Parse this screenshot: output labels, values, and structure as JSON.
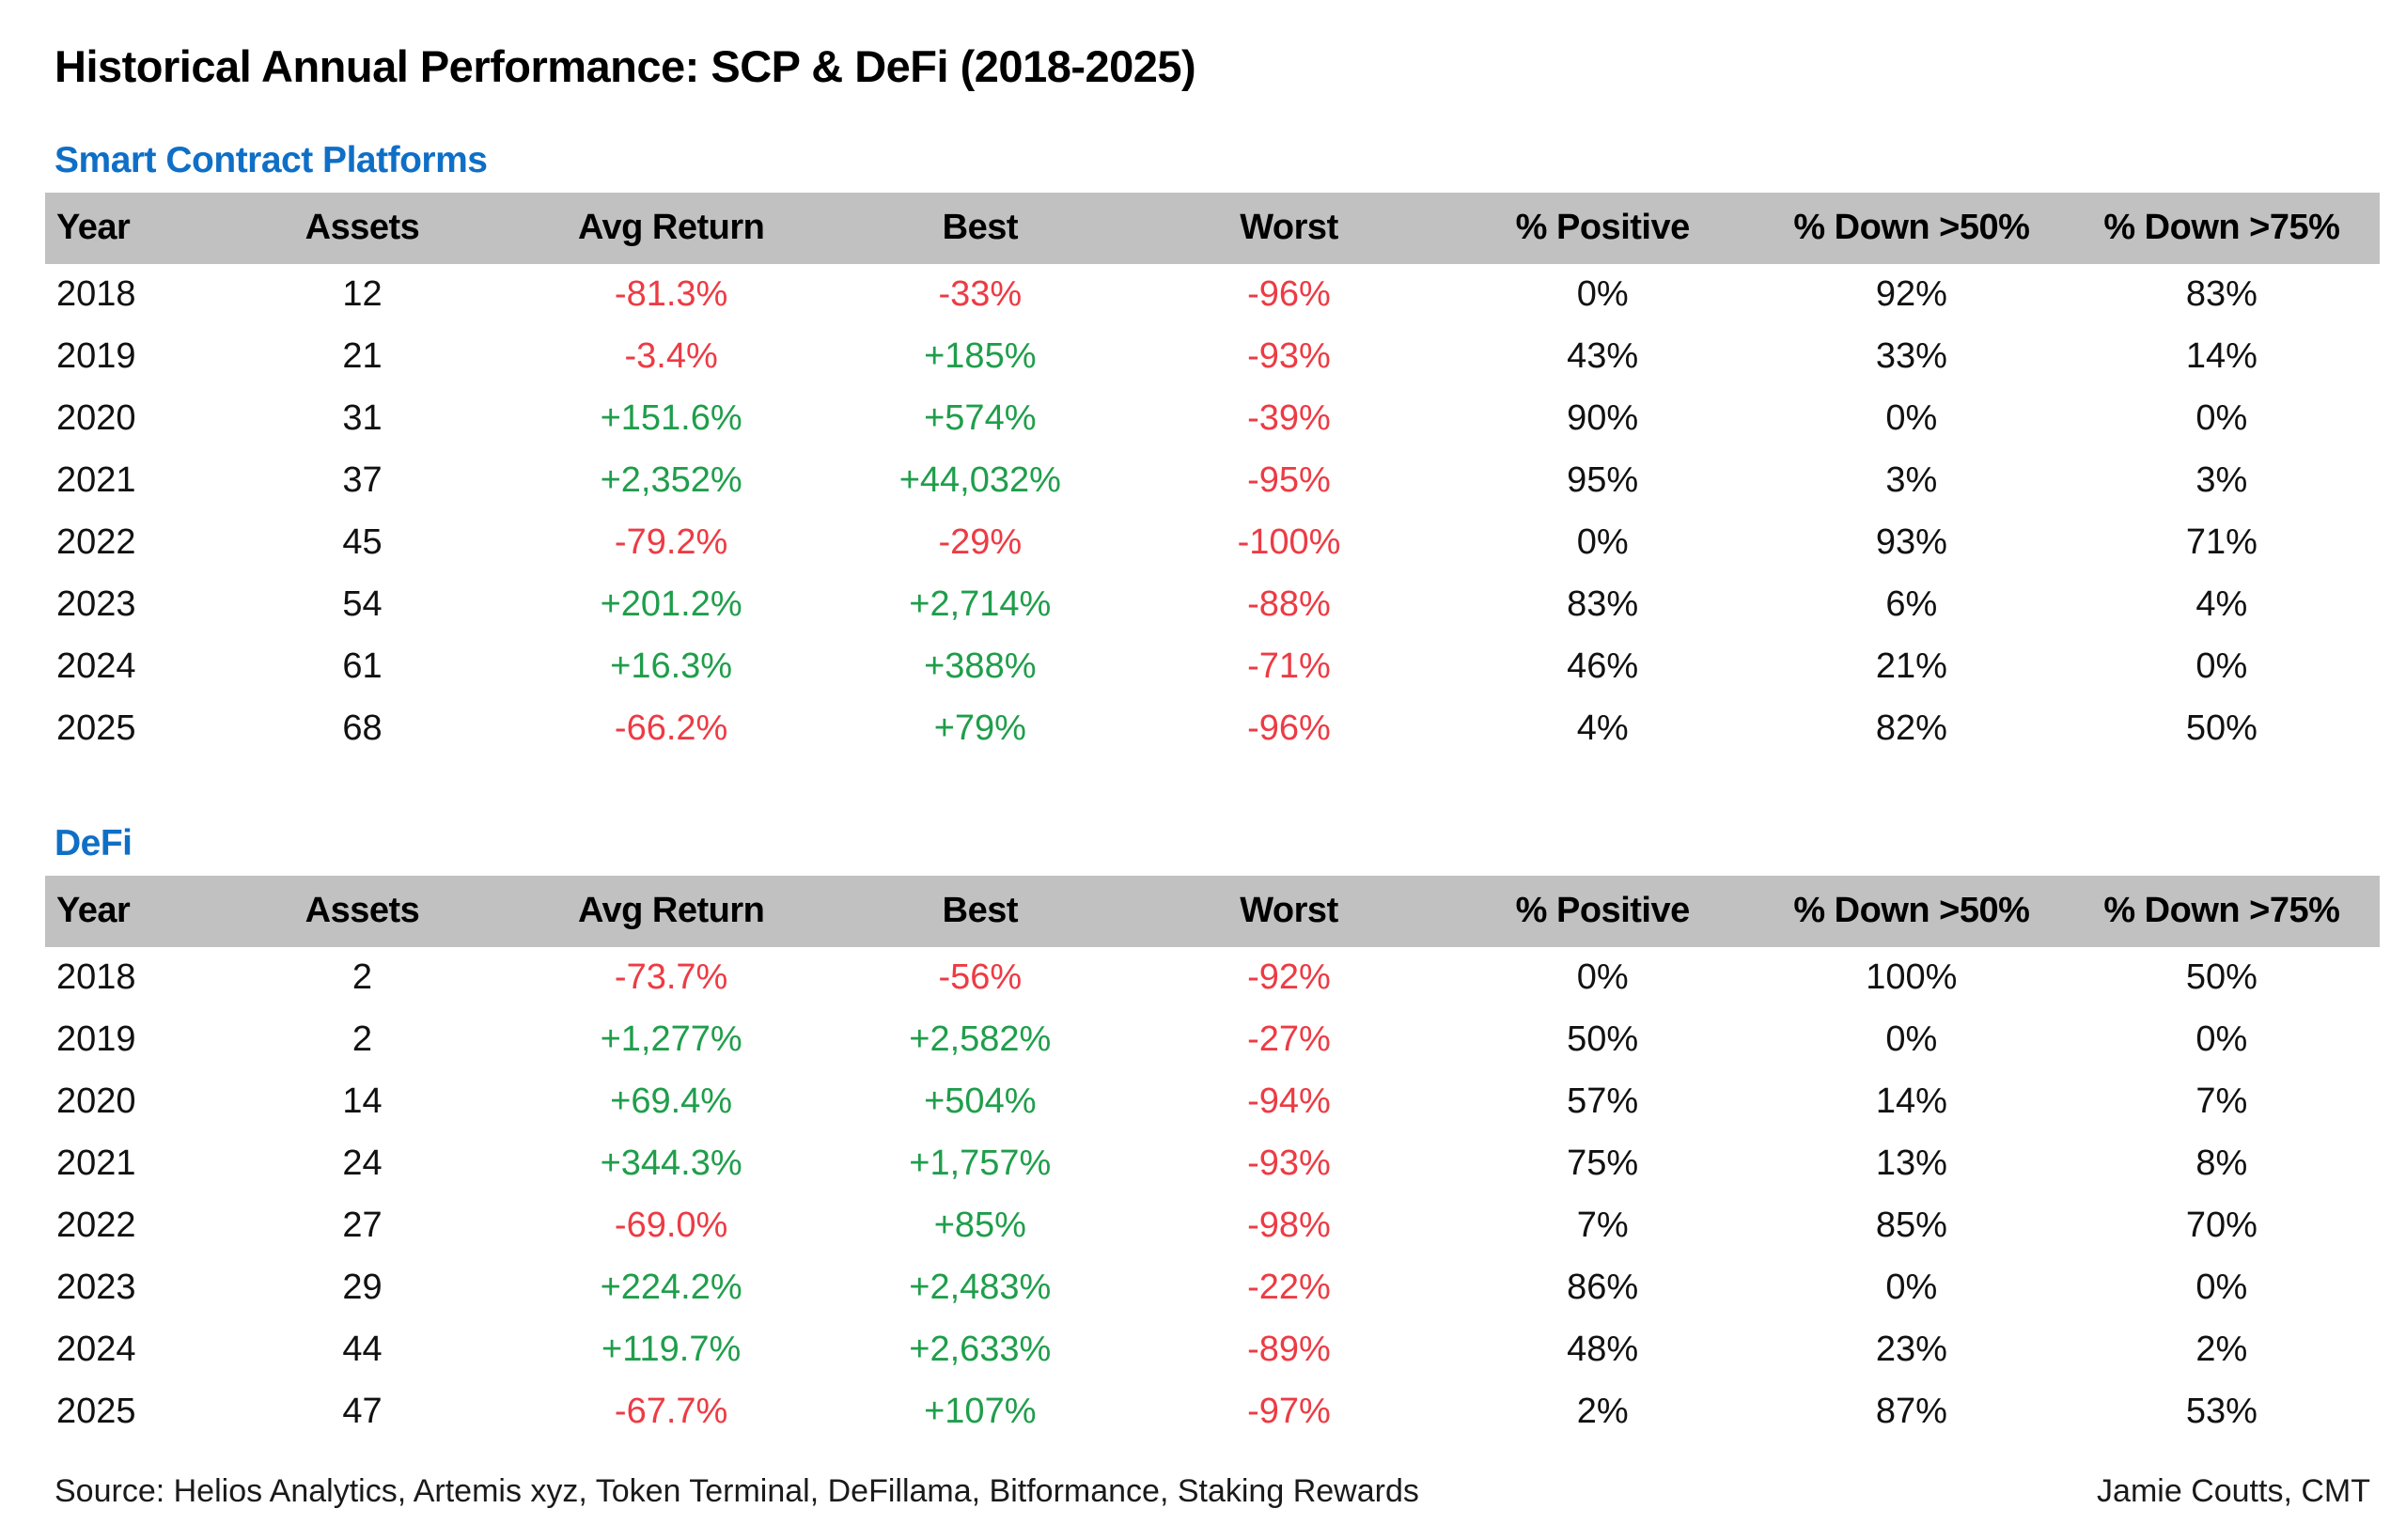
{
  "page_title": "Historical Annual Performance: SCP & DeFi (2018-2025)",
  "colors": {
    "section_title_blue": "#0f6fc6",
    "negative_red": "#ed3b44",
    "positive_green": "#1f9e4b",
    "header_band_gray": "#c1c1c1"
  },
  "chart_data": [
    {
      "type": "table",
      "title": "Smart Contract Platforms",
      "columns": [
        "Year",
        "Assets",
        "Avg Return",
        "Best",
        "Worst",
        "% Positive",
        "% Down >50%",
        "% Down >75%"
      ],
      "rows": [
        [
          "2018",
          "12",
          "-81.3%",
          "-33%",
          "-96%",
          "0%",
          "92%",
          "83%"
        ],
        [
          "2019",
          "21",
          "-3.4%",
          "+185%",
          "-93%",
          "43%",
          "33%",
          "14%"
        ],
        [
          "2020",
          "31",
          "+151.6%",
          "+574%",
          "-39%",
          "90%",
          "0%",
          "0%"
        ],
        [
          "2021",
          "37",
          "+2,352%",
          "+44,032%",
          "-95%",
          "95%",
          "3%",
          "3%"
        ],
        [
          "2022",
          "45",
          "-79.2%",
          "-29%",
          "-100%",
          "0%",
          "93%",
          "71%"
        ],
        [
          "2023",
          "54",
          "+201.2%",
          "+2,714%",
          "-88%",
          "83%",
          "6%",
          "4%"
        ],
        [
          "2024",
          "61",
          "+16.3%",
          "+388%",
          "-71%",
          "46%",
          "21%",
          "0%"
        ],
        [
          "2025",
          "68",
          "-66.2%",
          "+79%",
          "-96%",
          "4%",
          "82%",
          "50%"
        ]
      ]
    },
    {
      "type": "table",
      "title": "DeFi",
      "columns": [
        "Year",
        "Assets",
        "Avg Return",
        "Best",
        "Worst",
        "% Positive",
        "% Down >50%",
        "% Down >75%"
      ],
      "rows": [
        [
          "2018",
          "2",
          "-73.7%",
          "-56%",
          "-92%",
          "0%",
          "100%",
          "50%"
        ],
        [
          "2019",
          "2",
          "+1,277%",
          "+2,582%",
          "-27%",
          "50%",
          "0%",
          "0%"
        ],
        [
          "2020",
          "14",
          "+69.4%",
          "+504%",
          "-94%",
          "57%",
          "14%",
          "7%"
        ],
        [
          "2021",
          "24",
          "+344.3%",
          "+1,757%",
          "-93%",
          "75%",
          "13%",
          "8%"
        ],
        [
          "2022",
          "27",
          "-69.0%",
          "+85%",
          "-98%",
          "7%",
          "85%",
          "70%"
        ],
        [
          "2023",
          "29",
          "+224.2%",
          "+2,483%",
          "-22%",
          "86%",
          "0%",
          "0%"
        ],
        [
          "2024",
          "44",
          "+119.7%",
          "+2,633%",
          "-89%",
          "48%",
          "23%",
          "2%"
        ],
        [
          "2025",
          "47",
          "-67.7%",
          "+107%",
          "-97%",
          "2%",
          "87%",
          "53%"
        ]
      ]
    }
  ],
  "footer": {
    "source": "Source: Helios Analytics, Artemis xyz, Token Terminal, DeFillama, Bitformance, Staking Rewards",
    "credit": "Jamie Coutts, CMT"
  }
}
